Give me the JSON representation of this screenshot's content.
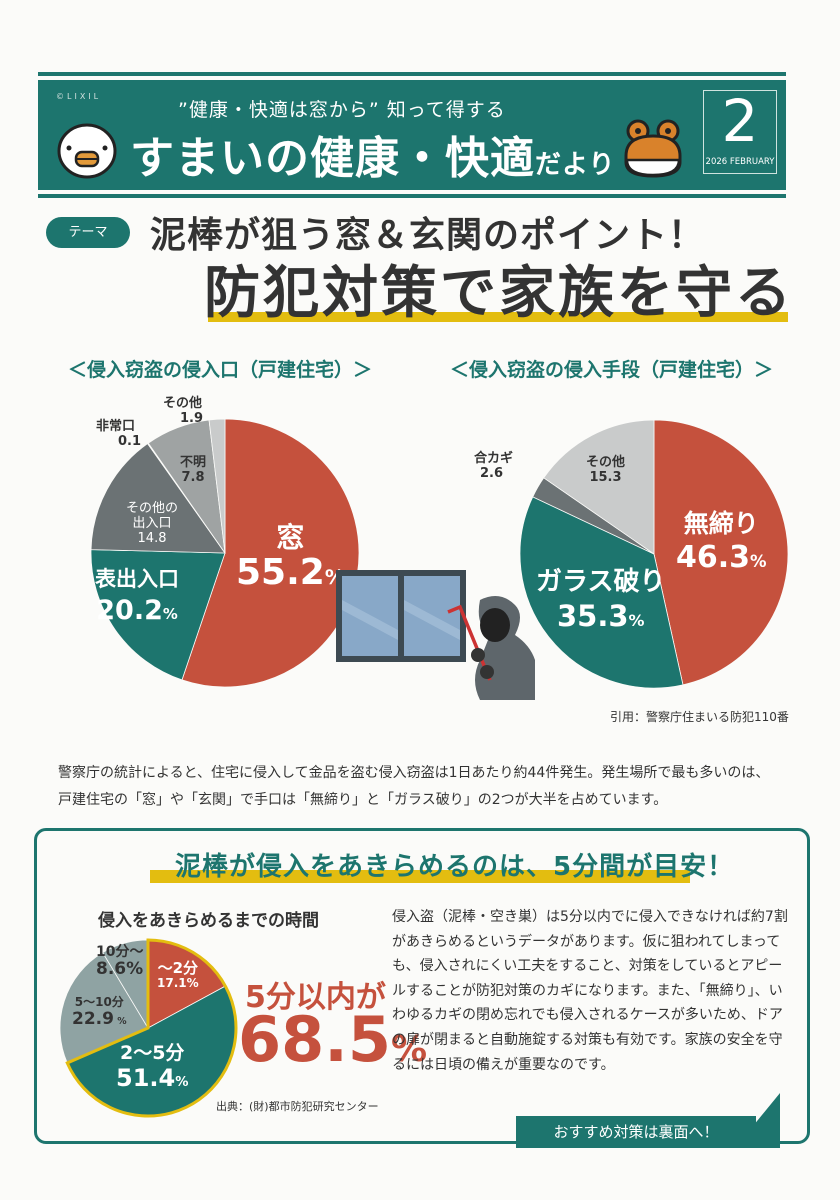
{
  "header": {
    "copyright": "©LIXIL",
    "subtitle": "”健康・快適は窓から” 知って得する",
    "title_main": "すまいの健康・快適",
    "title_suffix": "だより",
    "issue_number": "2",
    "issue_date": "2026 FEBRUARY",
    "mascot_left": "bird-icon",
    "mascot_right": "frog-icon"
  },
  "theme": {
    "badge": "テーマ",
    "line1": "泥棒が狙う窓＆玄関のポイント！",
    "line2": "防犯対策で家族を守る"
  },
  "colors": {
    "teal": "#1d756e",
    "red": "#c5513d",
    "yellow": "#e3bd10",
    "dark_gray": "#6b7274",
    "gray": "#9fa3a3",
    "light_gray": "#c9cbcb",
    "slate": "#8fa3a3"
  },
  "chart_data": [
    {
      "type": "pie",
      "title": "＜侵入窃盗の侵入口（戸建住宅）＞",
      "categories": [
        "窓",
        "表出入口",
        "その他の出入口",
        "非常口",
        "不明",
        "その他"
      ],
      "values": [
        55.2,
        20.2,
        14.8,
        0.1,
        7.8,
        1.9
      ],
      "unit": "%",
      "labels": [
        {
          "name": "窓",
          "value": "55.2",
          "pct": "%"
        },
        {
          "name": "表出入口",
          "value": "20.2",
          "pct": "%"
        },
        {
          "name_l1": "その他の",
          "name_l2": "出入口",
          "value": "14.8"
        },
        {
          "name": "非常口",
          "value": "0.1"
        },
        {
          "name": "不明",
          "value": "7.8"
        },
        {
          "name": "その他",
          "value": "1.9"
        }
      ]
    },
    {
      "type": "pie",
      "title": "＜侵入窃盗の侵入手段（戸建住宅）＞",
      "categories": [
        "無締り",
        "ガラス破り",
        "合カギ",
        "その他"
      ],
      "values": [
        46.3,
        35.3,
        2.6,
        15.3
      ],
      "unit": "%",
      "labels": [
        {
          "name": "無締り",
          "value": "46.3",
          "pct": "%"
        },
        {
          "name": "ガラス破り",
          "value": "35.3",
          "pct": "%"
        },
        {
          "name": "合カギ",
          "value": "2.6"
        },
        {
          "name": "その他",
          "value": "15.3"
        }
      ],
      "source": "引用：警察庁住まいる防犯110番"
    },
    {
      "type": "pie",
      "title": "侵入をあきらめるまでの時間",
      "categories": [
        "～2分",
        "2～5分",
        "5～10分",
        "10分～"
      ],
      "values": [
        17.1,
        51.4,
        22.9,
        8.6
      ],
      "unit": "%",
      "labels": [
        {
          "name": "～2分",
          "value": "17.1%"
        },
        {
          "name": "2～5分",
          "value": "51.4",
          "pct": "%"
        },
        {
          "name": "5～10分",
          "value": "22.9",
          "pct": " %"
        },
        {
          "name": "10分～",
          "value": "8.6%"
        }
      ],
      "highlight": {
        "line1": "5分以内が",
        "value": "68.5",
        "pct": "%"
      },
      "source": "出典：(財)都市防犯研究センター"
    }
  ],
  "body_text": {
    "line1": "警察庁の統計によると、住宅に侵入して金品を盗む侵入窃盗は1日あたり約44件発生。発生場所で最も多いのは、",
    "line2": "戸建住宅の「窓」や「玄関」で手口は「無締り」と「ガラス破り」の2つが大半を占めています。"
  },
  "box": {
    "heading": "泥棒が侵入をあきらめるのは、5分間が目安！",
    "paragraph": "侵入盗（泥棒・空き巣）は5分以内でに侵入できなければ約7割があきらめるというデータがあります。仮に狙われてしまっても、侵入されにくい工夫をすること、対策をしているとアピールすることが防犯対策のカギになります。また、「無締り」、いわゆるカギの閉め忘れでも侵入されるケースが多いため、ドアの扉が閉まると自動施錠する対策も有効です。家族の安全を守るには日頃の備えが重要なのです。",
    "cta": "おすすめ対策は裏面へ！"
  }
}
